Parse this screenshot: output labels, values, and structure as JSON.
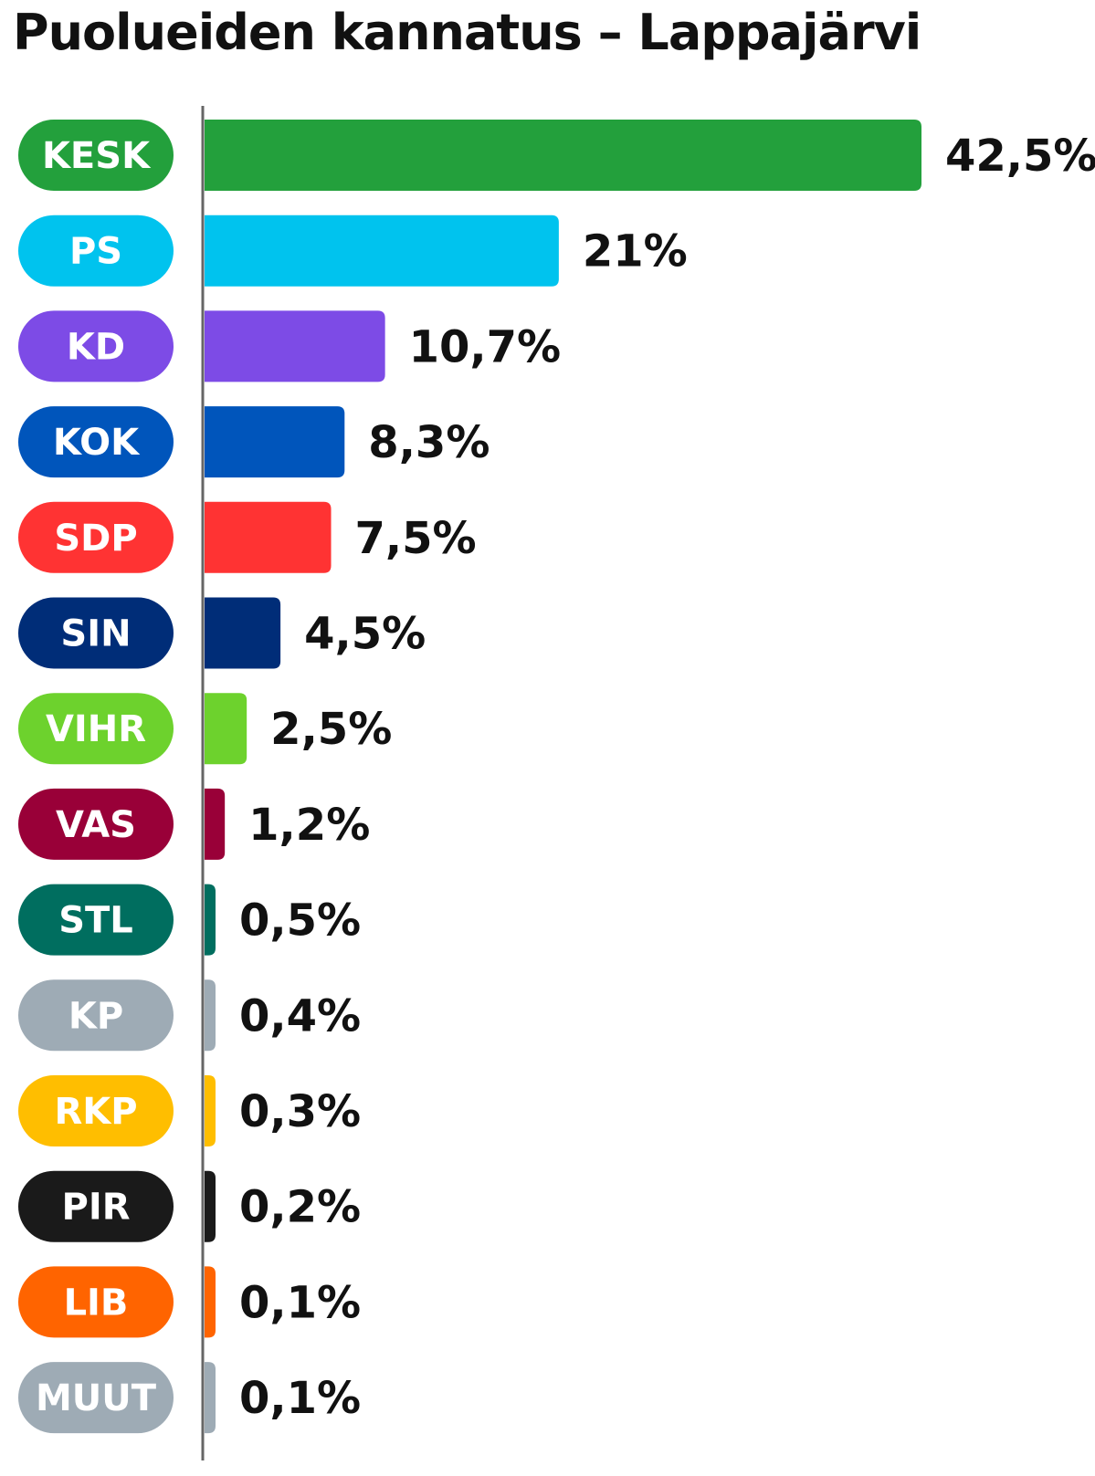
{
  "chart_data": {
    "type": "bar",
    "orientation": "horizontal",
    "title": "Puolueiden kannatus – Lappajärvi",
    "categories": [
      "KESK",
      "PS",
      "KD",
      "KOK",
      "SDP",
      "SIN",
      "VIHR",
      "VAS",
      "STL",
      "KP",
      "RKP",
      "PIR",
      "LIB",
      "MUUT"
    ],
    "values": [
      42.5,
      21,
      10.7,
      8.3,
      7.5,
      4.5,
      2.5,
      1.2,
      0.5,
      0.4,
      0.3,
      0.2,
      0.1,
      0.1
    ],
    "value_labels": [
      "42,5%",
      "21%",
      "10,7%",
      "8,3%",
      "7,5%",
      "4,5%",
      "2,5%",
      "1,2%",
      "0,5%",
      "0,4%",
      "0,3%",
      "0,2%",
      "0,1%",
      "0,1%"
    ],
    "colors": [
      "#23a03c",
      "#00c3ee",
      "#7d4be6",
      "#0055bb",
      "#ff3333",
      "#002d78",
      "#6dd22d",
      "#990038",
      "#006e5f",
      "#9eabb5",
      "#ffbe00",
      "#1a1a1a",
      "#ff6400",
      "#9eabb5"
    ],
    "xlabel": "",
    "ylabel": "",
    "xlim": [
      0,
      42.5
    ],
    "grid": false,
    "legend": "none"
  }
}
